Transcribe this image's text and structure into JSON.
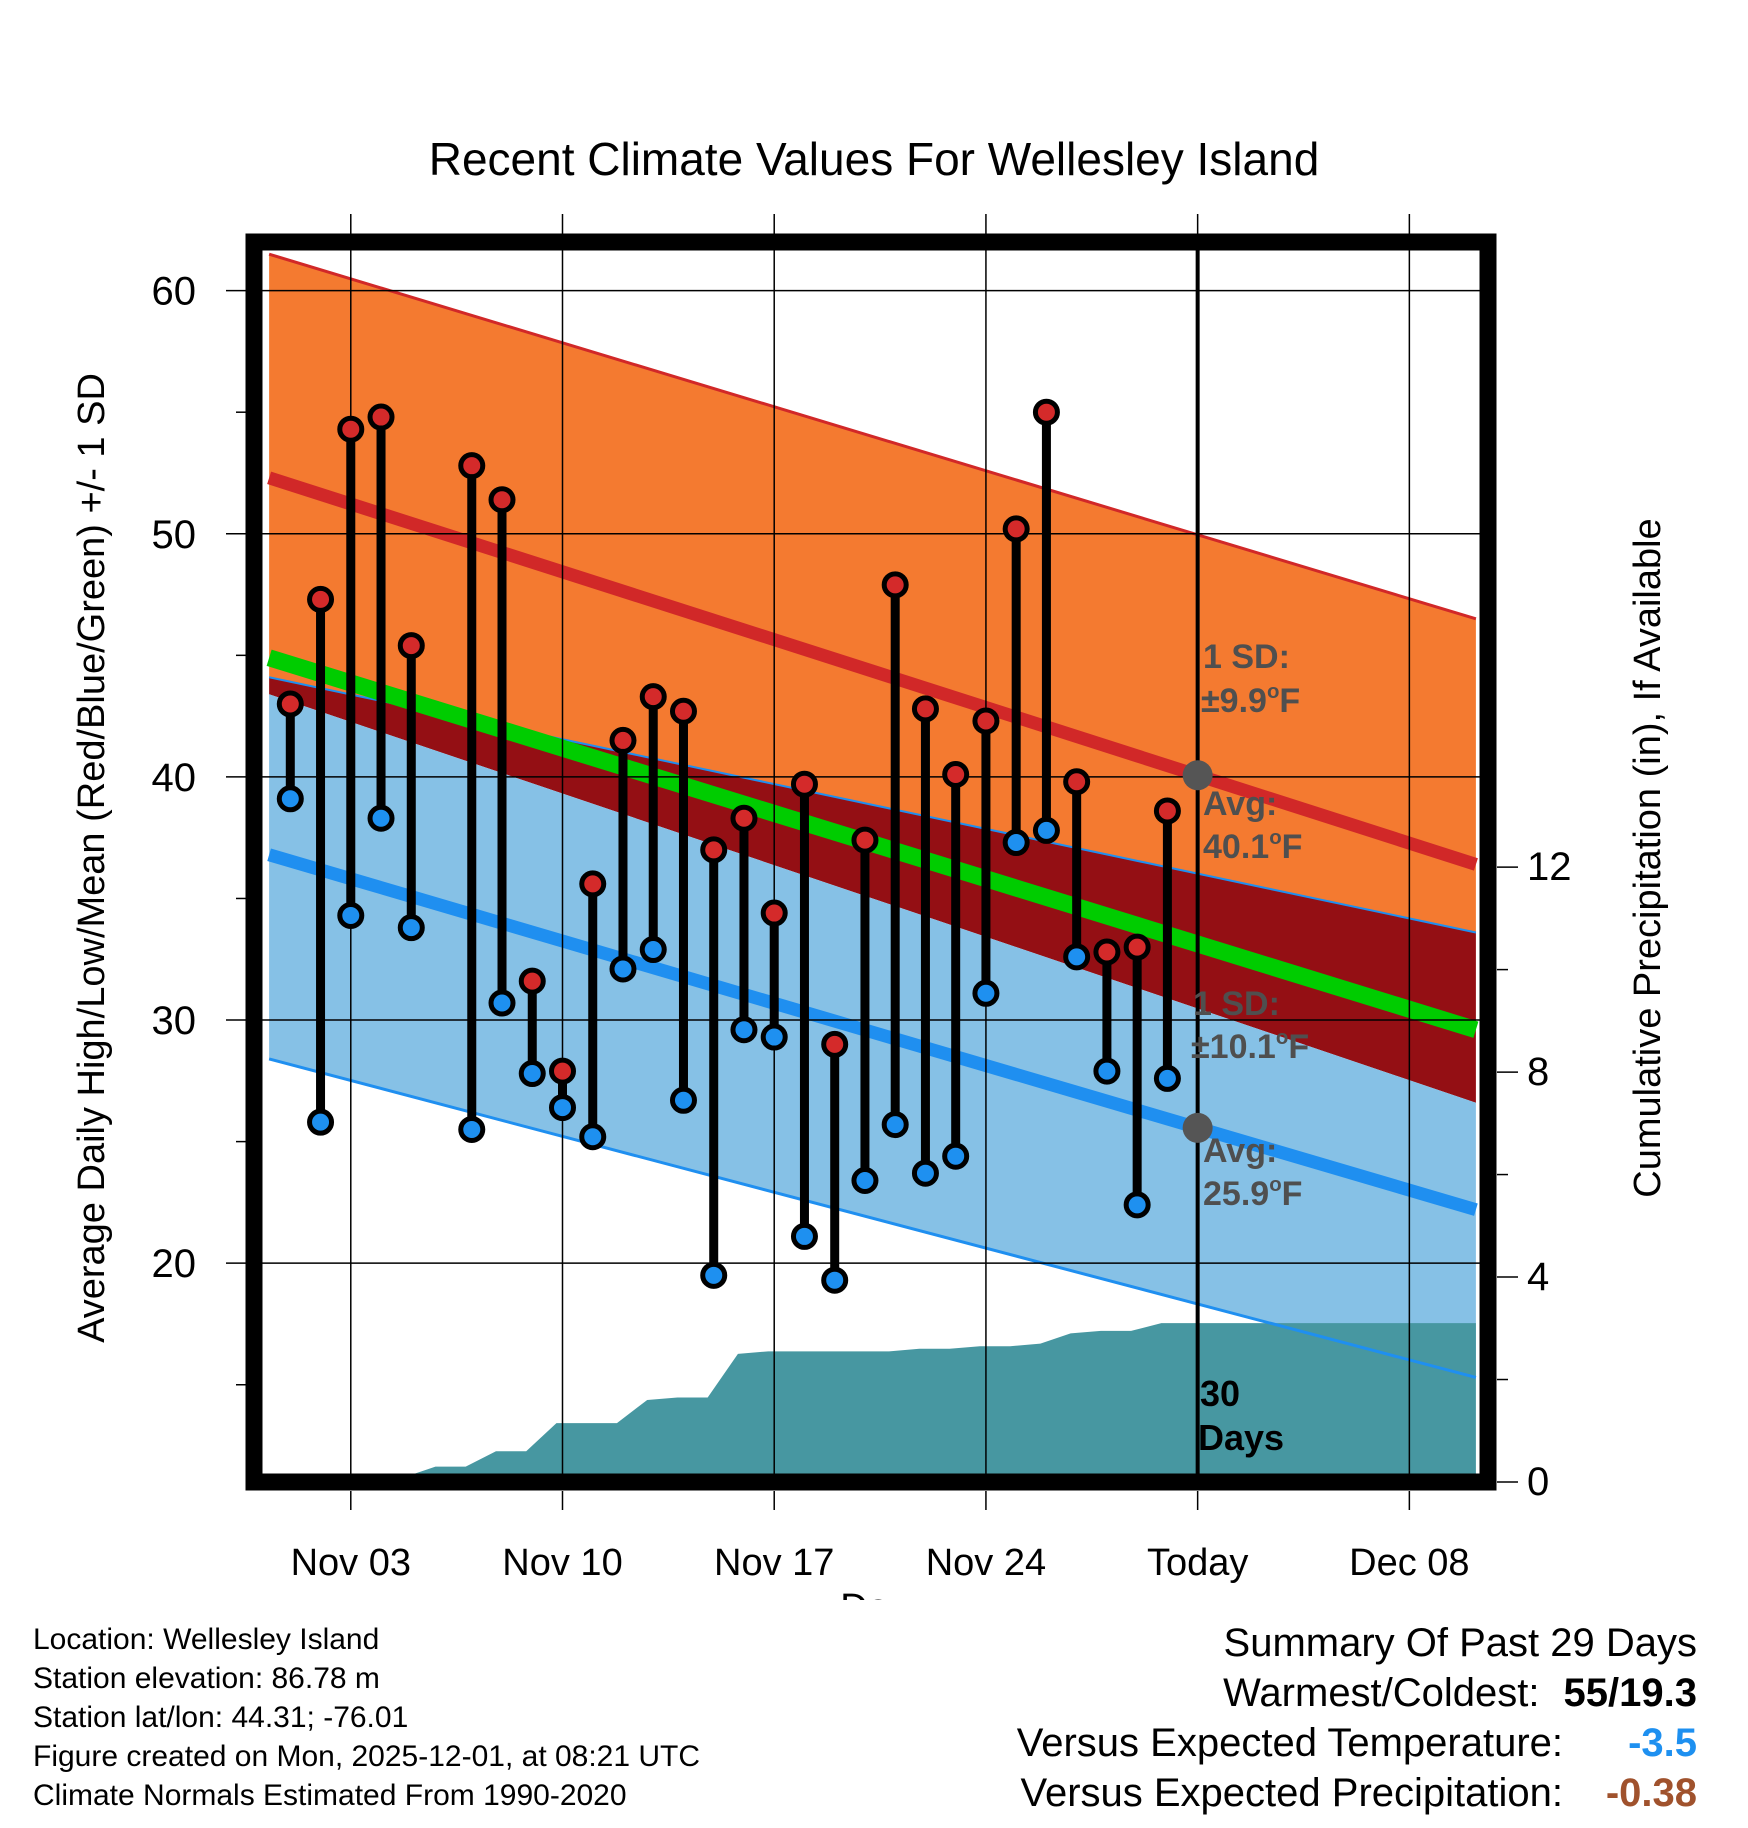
{
  "chart_data": {
    "type": "line",
    "title": "Recent Climate Values For Wellesley Island",
    "xlabel": "Day",
    "ylabel_left": "Average Daily High/Low/Mean (Red/Blue/Green) +/- 1 SD",
    "ylabel_right": "Cumulative Precipitation (in), If Available",
    "xlim": [
      -3.2,
      37.6
    ],
    "ylim_left": [
      11,
      62
    ],
    "ylim_right": [
      0,
      24.2
    ],
    "x_ticks": [
      {
        "x": 0,
        "label": "Nov 03"
      },
      {
        "x": 7,
        "label": "Nov 10"
      },
      {
        "x": 14,
        "label": "Nov 17"
      },
      {
        "x": 21,
        "label": "Nov 24"
      },
      {
        "x": 28,
        "label": "Today"
      },
      {
        "x": 35,
        "label": "Dec 08"
      }
    ],
    "y_ticks_left": [
      20,
      30,
      40,
      50,
      60
    ],
    "y_ticks_right": [
      0,
      4,
      8,
      12
    ],
    "today_x": 28,
    "normals": {
      "x": [
        -2.7,
        37.2
      ],
      "high_plus_sd": [
        61.5,
        46.5
      ],
      "high_mean": [
        52.3,
        36.4
      ],
      "high_minus_sd": [
        44.1,
        33.6
      ],
      "mean": [
        44.9,
        29.6
      ],
      "low_plus_sd": [
        43.4,
        26.6
      ],
      "low_mean": [
        36.8,
        22.2
      ],
      "low_minus_sd": [
        28.4,
        15.3
      ]
    },
    "daily": [
      {
        "x": -2,
        "high": 43.0,
        "low": 39.1
      },
      {
        "x": -1,
        "high": 47.3,
        "low": 25.8
      },
      {
        "x": 0,
        "high": 54.3,
        "low": 34.3
      },
      {
        "x": 1,
        "high": 54.8,
        "low": 38.3
      },
      {
        "x": 2,
        "high": 45.4,
        "low": 33.8
      },
      {
        "x": 4,
        "high": 52.8,
        "low": 25.5
      },
      {
        "x": 5,
        "high": 51.4,
        "low": 30.7
      },
      {
        "x": 6,
        "high": 31.6,
        "low": 27.8
      },
      {
        "x": 7,
        "high": 27.9,
        "low": 26.4
      },
      {
        "x": 8,
        "high": 35.6,
        "low": 25.2
      },
      {
        "x": 9,
        "high": 41.5,
        "low": 32.1
      },
      {
        "x": 10,
        "high": 43.3,
        "low": 32.9
      },
      {
        "x": 11,
        "high": 42.7,
        "low": 26.7
      },
      {
        "x": 12,
        "high": 37.0,
        "low": 19.5
      },
      {
        "x": 13,
        "high": 38.3,
        "low": 29.6
      },
      {
        "x": 14,
        "high": 34.4,
        "low": 29.3
      },
      {
        "x": 15,
        "high": 39.7,
        "low": 21.1
      },
      {
        "x": 16,
        "high": 29.0,
        "low": 19.3
      },
      {
        "x": 17,
        "high": 37.4,
        "low": 23.4
      },
      {
        "x": 18,
        "high": 47.9,
        "low": 25.7
      },
      {
        "x": 19,
        "high": 42.8,
        "low": 23.7
      },
      {
        "x": 20,
        "high": 40.1,
        "low": 24.4
      },
      {
        "x": 21,
        "high": 42.3,
        "low": 31.1
      },
      {
        "x": 22,
        "high": 50.2,
        "low": 37.3
      },
      {
        "x": 23,
        "high": 55.0,
        "low": 37.8
      },
      {
        "x": 24,
        "high": 39.8,
        "low": 32.6
      },
      {
        "x": 25,
        "high": 32.8,
        "low": 27.9
      },
      {
        "x": 26,
        "high": 33.0,
        "low": 22.4
      },
      {
        "x": 27,
        "high": 38.6,
        "low": 27.6
      }
    ],
    "precip_cumulative": {
      "x": [
        -2.7,
        -0.2,
        0.8,
        1.8,
        2.8,
        3.8,
        4.8,
        5.8,
        6.8,
        7.8,
        8.8,
        9.8,
        10.8,
        11.8,
        12.8,
        13.8,
        14.8,
        15.8,
        16.8,
        17.8,
        18.8,
        19.8,
        20.8,
        21.8,
        22.8,
        23.8,
        24.8,
        25.8,
        26.8,
        27.8,
        37.2
      ],
      "y": [
        0,
        0,
        0.1,
        0.1,
        0.3,
        0.3,
        0.6,
        0.6,
        1.15,
        1.15,
        1.15,
        1.6,
        1.65,
        1.65,
        2.5,
        2.55,
        2.55,
        2.55,
        2.55,
        2.55,
        2.6,
        2.6,
        2.65,
        2.65,
        2.7,
        2.9,
        2.95,
        2.95,
        3.1,
        3.1,
        3.1
      ]
    },
    "annotations": {
      "high_sd": "1 SD:",
      "high_sd_value": "±9.9°F",
      "high_avg": "Avg:",
      "high_avg_value": "40.1°F",
      "low_sd": "1 SD:",
      "low_sd_value": "±10.1°F",
      "low_avg": "Avg:",
      "low_avg_value": "25.9°F",
      "days_count": "30",
      "days_word": "Days"
    },
    "colors": {
      "high_band": "#f47a30",
      "high_line": "#d12828",
      "mid_band": "#940f14",
      "mean_line": "#00cc00",
      "low_band": "#86c1e6",
      "low_line": "#1f8ff0",
      "precip": "#4797a1",
      "high_marker": "#d42a2a",
      "low_marker": "#1e90f0",
      "annotation": "#4f4f4f"
    }
  },
  "info": {
    "location": "Location: Wellesley Island",
    "elevation": "Station elevation: 86.78 m",
    "latlon": "Station lat/lon: 44.31; -76.01",
    "created": "Figure created on Mon, 2025-12-01, at 08:21 UTC",
    "normals": "Climate Normals Estimated From 1990-2020"
  },
  "summary": {
    "title": "Summary Of Past 29 Days",
    "warm_cold_label": "Warmest/Coldest:",
    "warm_cold_value": "55/19.3",
    "temp_label": "Versus Expected Temperature:",
    "temp_value": "-3.5",
    "temp_color": "#1e90f0",
    "precip_label": "Versus Expected Precipitation:",
    "precip_value": "-0.38",
    "precip_color": "#a0522d"
  }
}
